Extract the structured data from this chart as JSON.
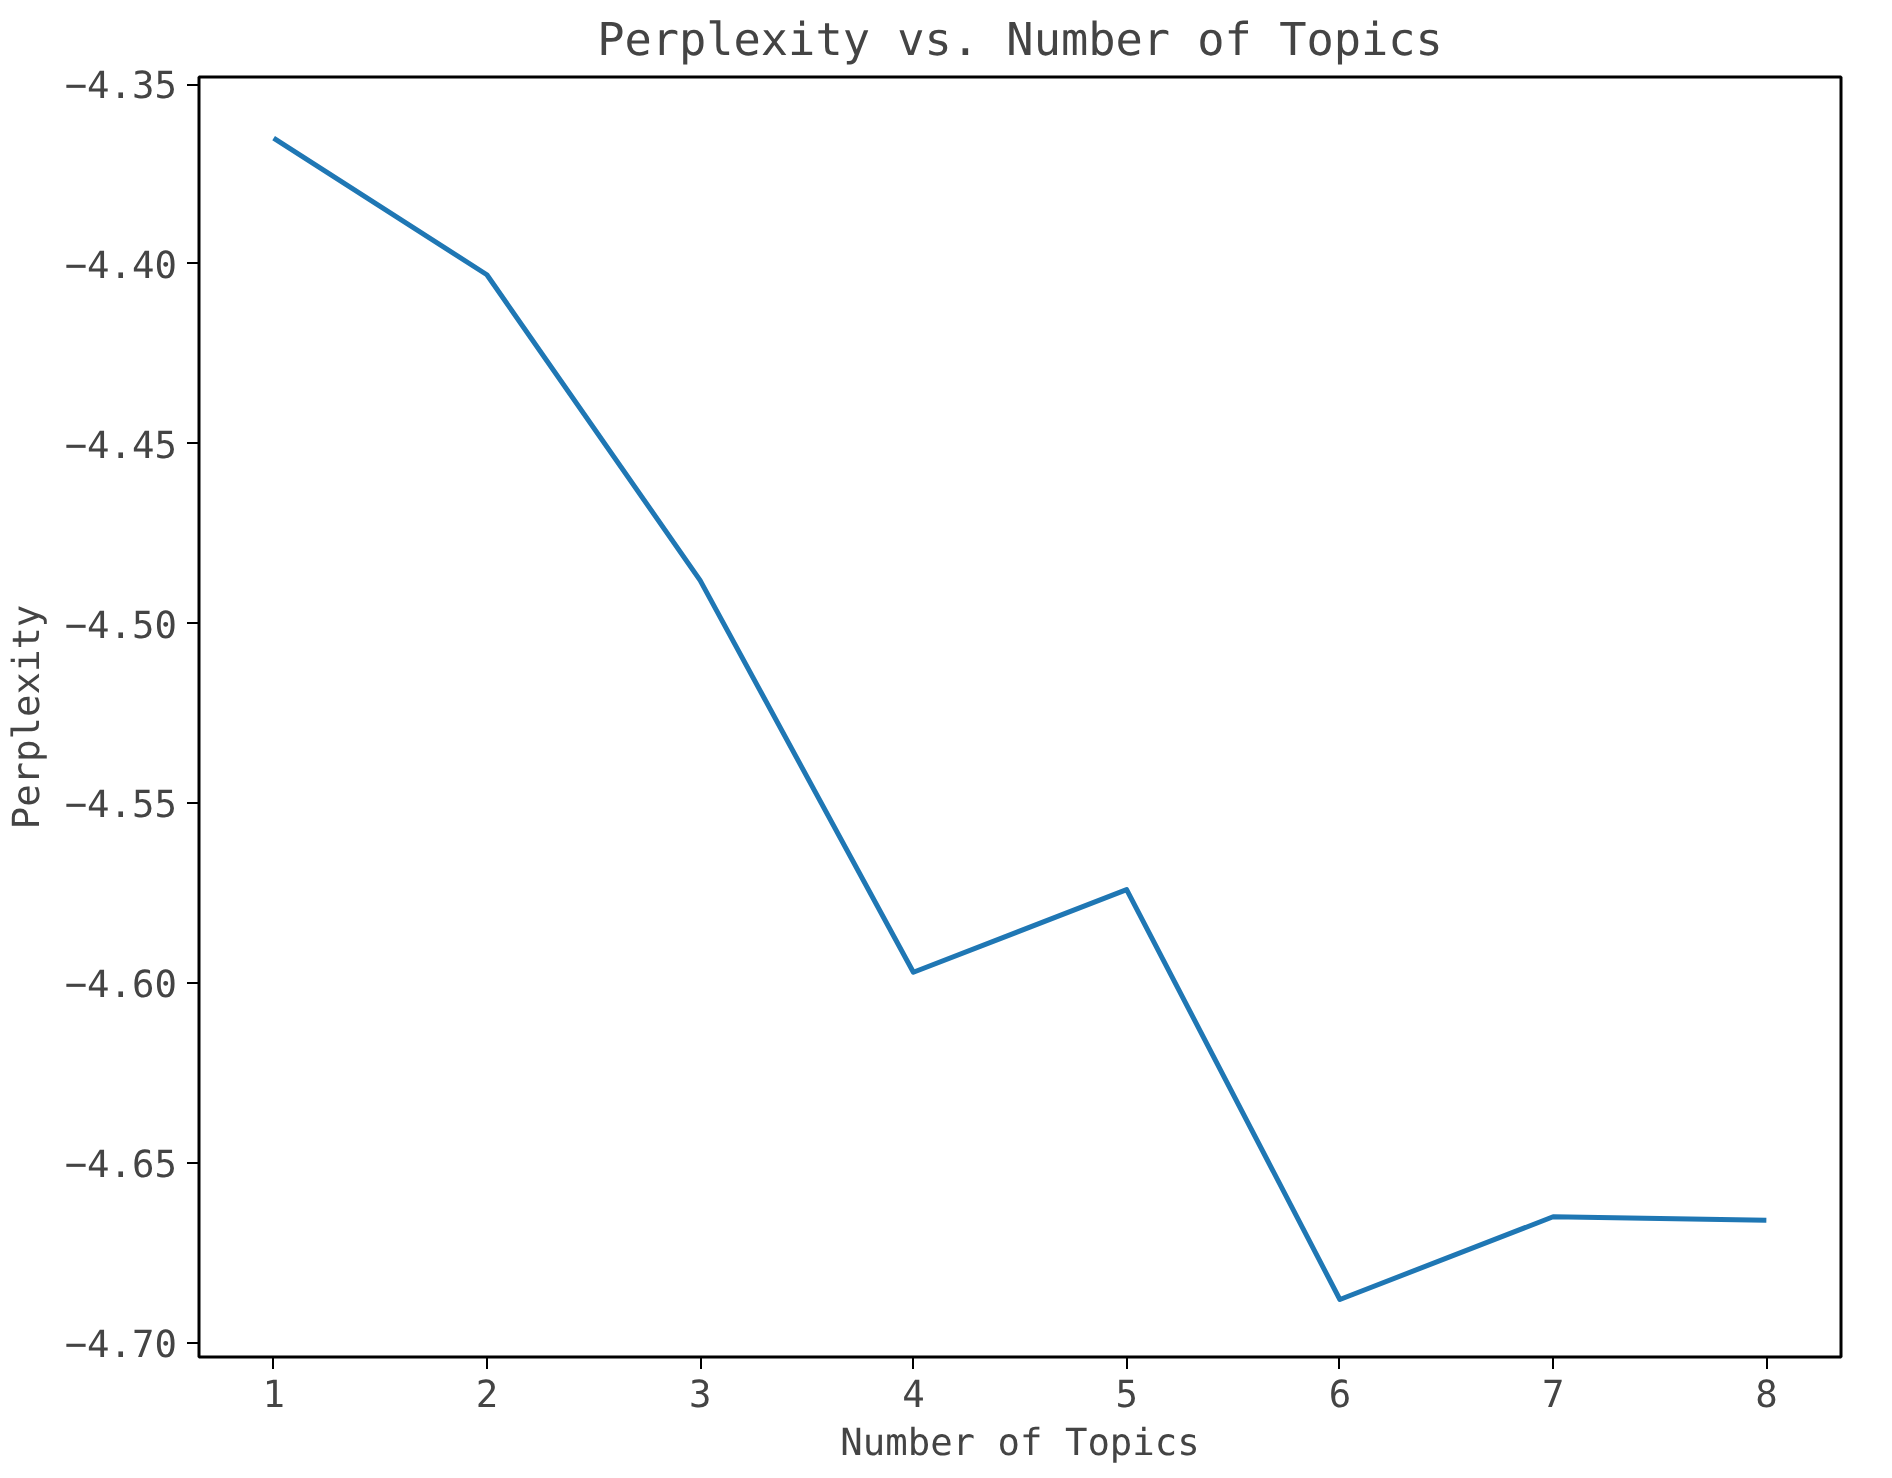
{
  "chart_data": {
    "type": "line",
    "title": "Perplexity vs. Number of Topics",
    "xlabel": "Number of Topics",
    "ylabel": "Perplexity",
    "x": [
      1,
      2,
      3,
      4,
      5,
      6,
      7,
      8
    ],
    "series": [
      {
        "color": "#1f77b4",
        "values": [
          -4.365,
          -4.403,
          -4.488,
          -4.597,
          -4.574,
          -4.688,
          -4.665,
          -4.666
        ]
      }
    ],
    "xlim": [
      0.65,
      8.35
    ],
    "ylim": [
      -4.704,
      -4.348
    ],
    "xticks": [
      1,
      2,
      3,
      4,
      5,
      6,
      7,
      8
    ],
    "yticks": [
      {
        "value": -4.35,
        "label": "−4.35"
      },
      {
        "value": -4.4,
        "label": "−4.40"
      },
      {
        "value": -4.45,
        "label": "−4.45"
      },
      {
        "value": -4.5,
        "label": "−4.50"
      },
      {
        "value": -4.55,
        "label": "−4.55"
      },
      {
        "value": -4.6,
        "label": "−4.60"
      },
      {
        "value": -4.65,
        "label": "−4.65"
      },
      {
        "value": -4.7,
        "label": "−4.70"
      }
    ],
    "grid": false,
    "line_style": "solid",
    "marker": "none"
  }
}
